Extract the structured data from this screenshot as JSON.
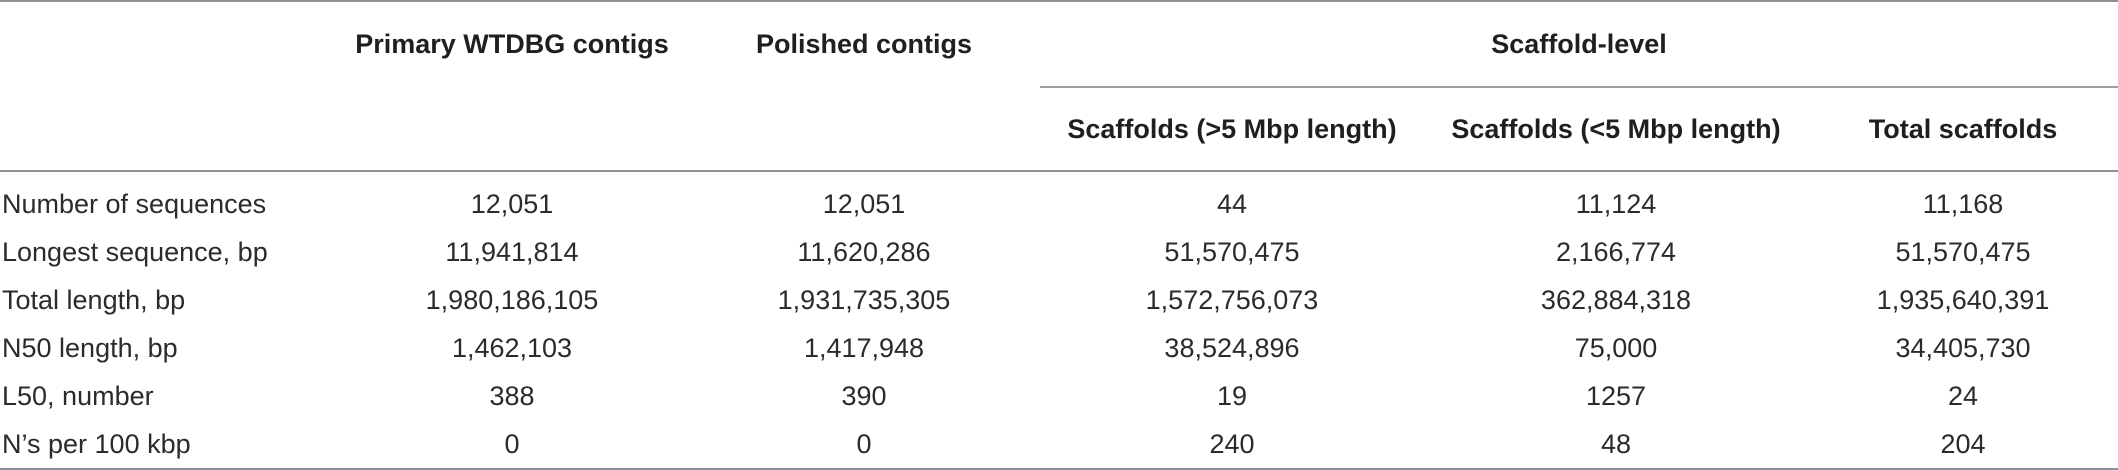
{
  "headers": {
    "col1": "Primary WTDBG contigs",
    "col2": "Polished contigs",
    "group": "Scaffold-level",
    "sub1": "Scaffolds (>5 Mbp length)",
    "sub2": "Scaffolds (<5 Mbp length)",
    "sub3": "Total scaffolds"
  },
  "rows": [
    {
      "label": "Number of sequences",
      "values": [
        "12,051",
        "12,051",
        "44",
        "11,124",
        "11,168"
      ]
    },
    {
      "label": "Longest sequence, bp",
      "values": [
        "11,941,814",
        "11,620,286",
        "51,570,475",
        "2,166,774",
        "51,570,475"
      ]
    },
    {
      "label": "Total length, bp",
      "values": [
        "1,980,186,105",
        "1,931,735,305",
        "1,572,756,073",
        "362,884,318",
        "1,935,640,391"
      ]
    },
    {
      "label": "N50 length, bp",
      "values": [
        "1,462,103",
        "1,417,948",
        "38,524,896",
        "75,000",
        "34,405,730"
      ]
    },
    {
      "label": "L50, number",
      "values": [
        "388",
        "390",
        "19",
        "1257",
        "24"
      ]
    },
    {
      "label": "N’s per 100 kbp",
      "values": [
        "0",
        "0",
        "240",
        "48",
        "204"
      ]
    }
  ]
}
